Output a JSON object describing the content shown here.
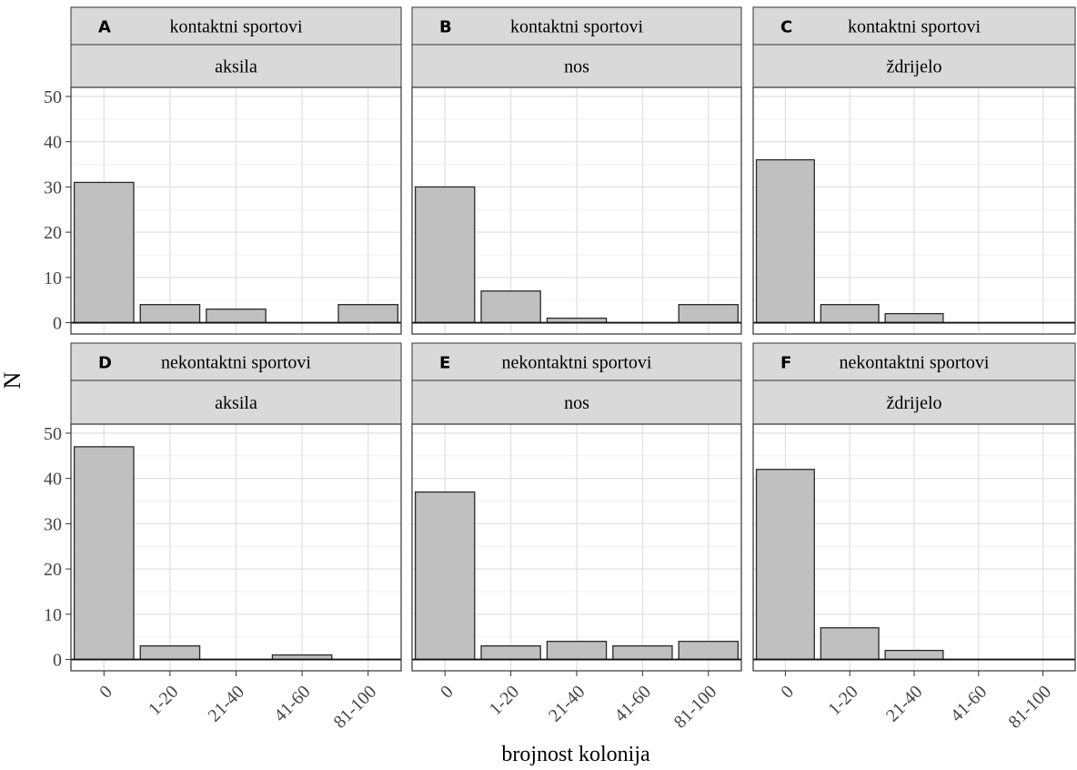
{
  "chart_data": {
    "type": "bar",
    "xlabel": "brojnost kolonija",
    "ylabel": "N",
    "categories": [
      "0",
      "1-20",
      "21-40",
      "41-60",
      "81-100"
    ],
    "ylim": [
      -2.5,
      52
    ],
    "yticks": [
      0,
      10,
      20,
      30,
      40,
      50
    ],
    "grid": true,
    "bar_color": "#c0c0c0",
    "strip_color": "#d9d9d9",
    "panels": [
      {
        "letter": "A",
        "group": "kontaktni sportovi",
        "site": "aksila",
        "values": [
          31,
          4,
          3,
          0,
          4
        ]
      },
      {
        "letter": "B",
        "group": "kontaktni sportovi",
        "site": "nos",
        "values": [
          30,
          7,
          1,
          0,
          4
        ]
      },
      {
        "letter": "C",
        "group": "kontaktni sportovi",
        "site": "ždrijelo",
        "values": [
          36,
          4,
          2,
          0,
          0
        ]
      },
      {
        "letter": "D",
        "group": "nekontaktni sportovi",
        "site": "aksila",
        "values": [
          47,
          3,
          0,
          1,
          0
        ]
      },
      {
        "letter": "E",
        "group": "nekontaktni sportovi",
        "site": "nos",
        "values": [
          37,
          3,
          4,
          3,
          4
        ]
      },
      {
        "letter": "F",
        "group": "nekontaktni sportovi",
        "site": "ždrijelo",
        "values": [
          42,
          7,
          2,
          0,
          0
        ]
      }
    ]
  }
}
